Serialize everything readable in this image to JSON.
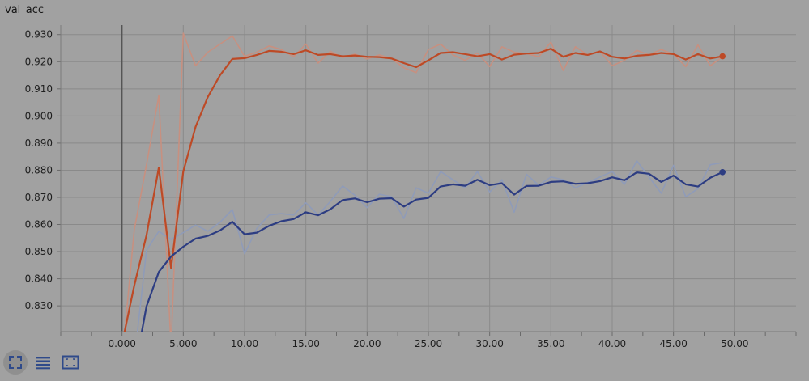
{
  "title": "val_acc",
  "toolbar": {
    "icons": [
      "expand-icon",
      "list-icon",
      "fit-domain-icon"
    ]
  },
  "chart_data": {
    "type": "line",
    "title": "val_acc",
    "xlabel": "",
    "ylabel": "",
    "xlim": [
      -5,
      55
    ],
    "ylim": [
      0.8205,
      0.9335
    ],
    "xticks": [
      0,
      5,
      10,
      15,
      20,
      25,
      30,
      35,
      40,
      45,
      50
    ],
    "xtick_labels": [
      "0.000",
      "5.000",
      "10.00",
      "15.00",
      "20.00",
      "25.00",
      "30.00",
      "35.00",
      "40.00",
      "45.00",
      "50.00"
    ],
    "yticks": [
      0.83,
      0.84,
      0.85,
      0.86,
      0.87,
      0.88,
      0.89,
      0.9,
      0.91,
      0.92,
      0.93
    ],
    "ytick_labels": [
      "0.830",
      "0.840",
      "0.850",
      "0.860",
      "0.870",
      "0.880",
      "0.890",
      "0.900",
      "0.910",
      "0.920",
      "0.930"
    ],
    "grid": true,
    "series": [
      {
        "color": "#bd4a26",
        "raw_color": "#c79080",
        "x": [
          0,
          1,
          2,
          3,
          4,
          5,
          6,
          7,
          8,
          9,
          10,
          11,
          12,
          13,
          14,
          15,
          16,
          17,
          18,
          19,
          20,
          21,
          22,
          23,
          24,
          25,
          26,
          27,
          28,
          29,
          30,
          31,
          32,
          33,
          34,
          35,
          36,
          37,
          38,
          39,
          40,
          41,
          42,
          43,
          44,
          45,
          46,
          47,
          48,
          49
        ],
        "raw": [
          0.81,
          0.858,
          0.882,
          0.9075,
          0.815,
          0.9305,
          0.9185,
          0.9235,
          0.9265,
          0.9295,
          0.922,
          0.9235,
          0.9258,
          0.9245,
          0.9218,
          0.9265,
          0.9195,
          0.9238,
          0.9215,
          0.9228,
          0.921,
          0.9225,
          0.9212,
          0.9178,
          0.916,
          0.9245,
          0.9265,
          0.9225,
          0.9205,
          0.9232,
          0.9182,
          0.9255,
          0.9235,
          0.923,
          0.9218,
          0.9272,
          0.9168,
          0.9255,
          0.9225,
          0.9238,
          0.9185,
          0.9205,
          0.9242,
          0.9225,
          0.9245,
          0.9228,
          0.9182,
          0.9262,
          0.9185,
          0.9218
        ],
        "smoothed": [
          0.816,
          0.8375,
          0.856,
          0.881,
          0.844,
          0.8795,
          0.896,
          0.907,
          0.915,
          0.921,
          0.9213,
          0.9225,
          0.924,
          0.9237,
          0.9228,
          0.9242,
          0.9225,
          0.9228,
          0.922,
          0.9223,
          0.9218,
          0.9217,
          0.9212,
          0.9195,
          0.918,
          0.9205,
          0.9232,
          0.9235,
          0.9228,
          0.922,
          0.9228,
          0.9208,
          0.9226,
          0.923,
          0.9232,
          0.9248,
          0.9218,
          0.9232,
          0.9225,
          0.9238,
          0.9218,
          0.9212,
          0.9222,
          0.9225,
          0.9232,
          0.9228,
          0.9208,
          0.9228,
          0.9212,
          0.922
        ]
      },
      {
        "color": "#2d3d82",
        "raw_color": "#8f9bb8",
        "x": [
          0,
          1,
          2,
          3,
          4,
          5,
          6,
          7,
          8,
          9,
          10,
          11,
          12,
          13,
          14,
          15,
          16,
          17,
          18,
          19,
          20,
          21,
          22,
          23,
          24,
          25,
          26,
          27,
          28,
          29,
          30,
          31,
          32,
          33,
          34,
          35,
          36,
          37,
          38,
          39,
          40,
          41,
          42,
          43,
          44,
          45,
          46,
          47,
          48,
          49
        ],
        "raw": [
          0.805,
          0.81,
          0.8505,
          0.8575,
          0.8545,
          0.857,
          0.8598,
          0.8575,
          0.8608,
          0.8655,
          0.8492,
          0.8585,
          0.8635,
          0.864,
          0.8635,
          0.868,
          0.8635,
          0.8685,
          0.8742,
          0.8708,
          0.8662,
          0.8712,
          0.8702,
          0.8622,
          0.8735,
          0.8715,
          0.8795,
          0.8765,
          0.8735,
          0.8795,
          0.872,
          0.8765,
          0.8645,
          0.8785,
          0.8745,
          0.8775,
          0.8765,
          0.8735,
          0.8755,
          0.8775,
          0.8795,
          0.8748,
          0.8835,
          0.8775,
          0.8715,
          0.8818,
          0.8702,
          0.8732,
          0.882,
          0.8828
        ],
        "smoothed": [
          0.803,
          0.8055,
          0.8298,
          0.8425,
          0.8482,
          0.8518,
          0.8548,
          0.8558,
          0.8578,
          0.861,
          0.8564,
          0.857,
          0.8595,
          0.8612,
          0.862,
          0.8645,
          0.8634,
          0.8656,
          0.869,
          0.8696,
          0.8682,
          0.8695,
          0.8697,
          0.8666,
          0.8692,
          0.8698,
          0.874,
          0.8748,
          0.8743,
          0.8765,
          0.8745,
          0.8752,
          0.871,
          0.8742,
          0.8743,
          0.8757,
          0.8759,
          0.875,
          0.8752,
          0.876,
          0.8774,
          0.8763,
          0.8792,
          0.8787,
          0.8757,
          0.878,
          0.8748,
          0.874,
          0.8772,
          0.8793
        ]
      }
    ]
  }
}
